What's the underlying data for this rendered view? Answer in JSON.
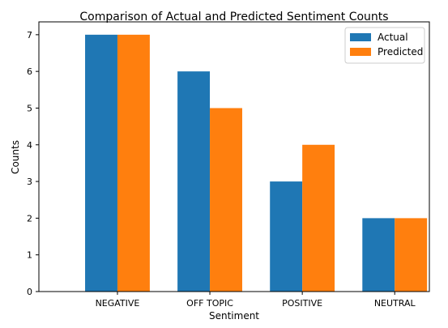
{
  "chart_data": {
    "type": "bar",
    "title": "Comparison of Actual and Predicted Sentiment Counts",
    "xlabel": "Sentiment",
    "ylabel": "Counts",
    "categories": [
      "NEGATIVE",
      "OFF TOPIC",
      "POSITIVE",
      "NEUTRAL"
    ],
    "series": [
      {
        "name": "Actual",
        "values": [
          7,
          6,
          3,
          2
        ],
        "color": "#1f77b4"
      },
      {
        "name": "Predicted",
        "values": [
          7,
          5,
          4,
          2
        ],
        "color": "#ff7f0e"
      }
    ],
    "ylim": [
      0,
      7.35
    ],
    "yticks": [
      0,
      1,
      2,
      3,
      4,
      5,
      6,
      7
    ],
    "grid": false,
    "legend": "top-right"
  }
}
